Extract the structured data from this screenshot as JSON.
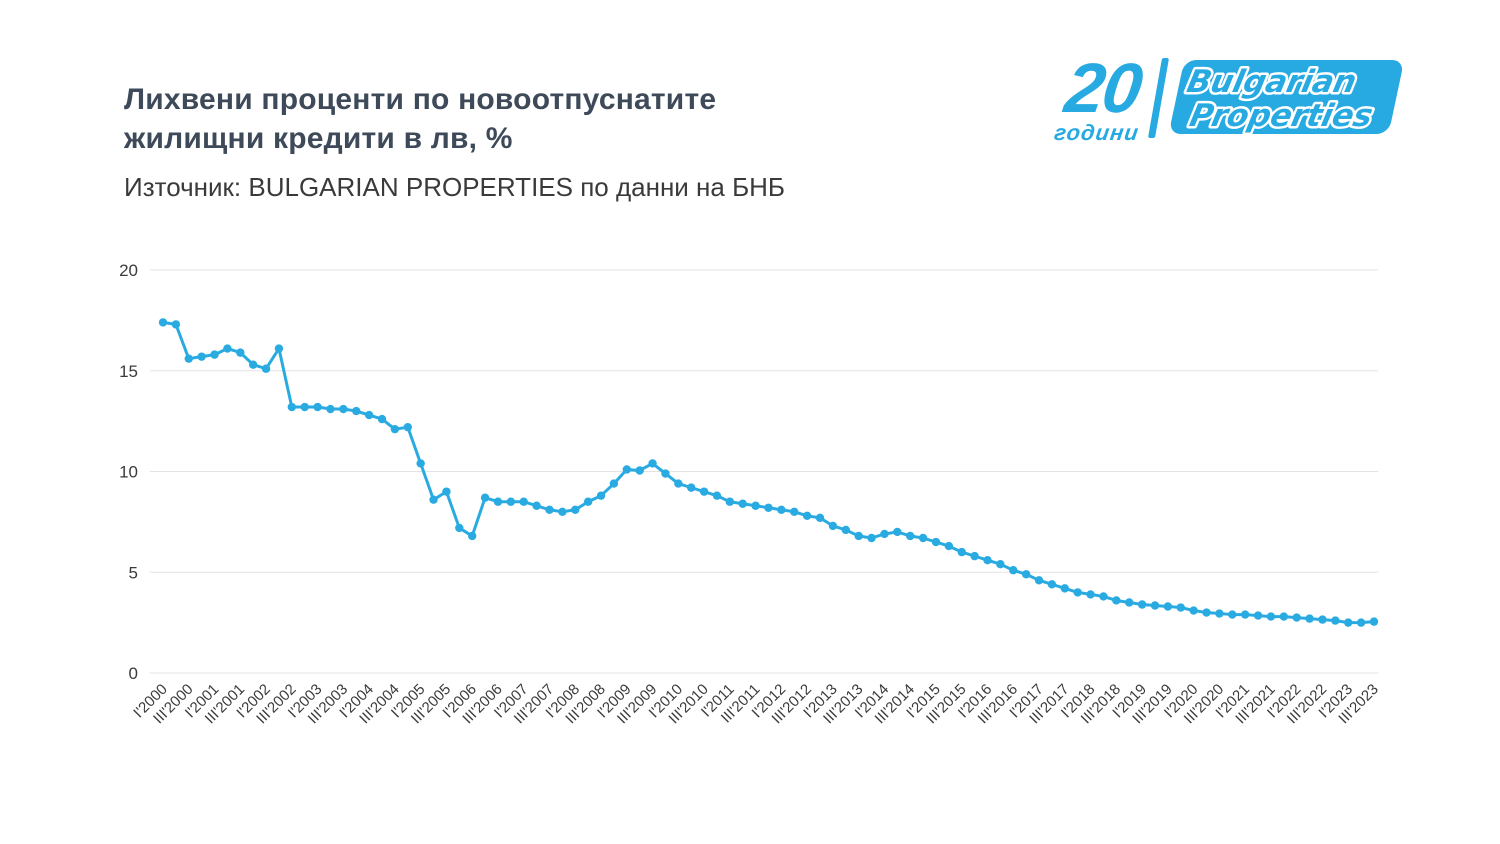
{
  "page": {
    "title_line1": "Лихвени проценти по новоотпуснатите",
    "title_line2": "жилищни кредити в лв, %",
    "subtitle": "Източник: BULGARIAN PROPERTIES по данни на БНБ"
  },
  "logo": {
    "number": "20",
    "years_label": "години",
    "brand_line1": "Bulgarian",
    "brand_line2": "Properties",
    "color": "#27a9e1"
  },
  "chart_data": {
    "type": "line",
    "title": "Лихвени проценти по новоотпуснатите жилищни кредити в лв, %",
    "source": "Източник: BULGARIAN PROPERTIES по данни на БНБ",
    "line_color": "#29ABE2",
    "grid": true,
    "ylim": [
      0,
      20
    ],
    "y_ticks": [
      0,
      5,
      10,
      15,
      20
    ],
    "points_per_tick": 2,
    "x_tick_labels": [
      "I'2000",
      "III'2000",
      "I'2001",
      "III'2001",
      "I'2002",
      "III'2002",
      "I'2003",
      "III'2003",
      "I'2004",
      "III'2004",
      "I'2005",
      "III'2005",
      "I'2006",
      "III'2006",
      "I'2007",
      "III'2007",
      "I'2008",
      "III'2008",
      "I'2009",
      "III'2009",
      "I'2010",
      "III'2010",
      "I'2011",
      "III'2011",
      "I'2012",
      "III'2012",
      "I'2013",
      "III'2013",
      "I'2014",
      "III'2014",
      "I'2015",
      "III'2015",
      "I'2016",
      "III'2016",
      "I'2017",
      "III'2017",
      "I'2018",
      "III'2018",
      "I'2019",
      "III'2019",
      "I'2020",
      "III'2020",
      "I'2021",
      "III'2021",
      "I'2022",
      "III'2022",
      "I'2023",
      "III'2023"
    ],
    "values": [
      17.4,
      17.3,
      15.6,
      15.7,
      15.8,
      16.1,
      15.9,
      15.3,
      15.1,
      16.1,
      13.2,
      13.2,
      13.2,
      13.1,
      13.1,
      13.0,
      12.8,
      12.6,
      12.1,
      12.2,
      10.4,
      8.6,
      9.0,
      7.2,
      6.8,
      8.7,
      8.5,
      8.5,
      8.5,
      8.3,
      8.1,
      8.0,
      8.1,
      8.5,
      8.8,
      9.4,
      10.1,
      10.05,
      10.4,
      9.9,
      9.4,
      9.2,
      9.0,
      8.8,
      8.5,
      8.4,
      8.3,
      8.2,
      8.1,
      8.0,
      7.8,
      7.7,
      7.3,
      7.1,
      6.8,
      6.7,
      6.9,
      7.0,
      6.8,
      6.7,
      6.5,
      6.3,
      6.0,
      5.8,
      5.6,
      5.4,
      5.1,
      4.9,
      4.6,
      4.4,
      4.2,
      4.0,
      3.9,
      3.8,
      3.6,
      3.5,
      3.4,
      3.35,
      3.3,
      3.25,
      3.1,
      3.0,
      2.95,
      2.9,
      2.9,
      2.85,
      2.8,
      2.8,
      2.75,
      2.7,
      2.65,
      2.6,
      2.5,
      2.5,
      2.55
    ]
  }
}
